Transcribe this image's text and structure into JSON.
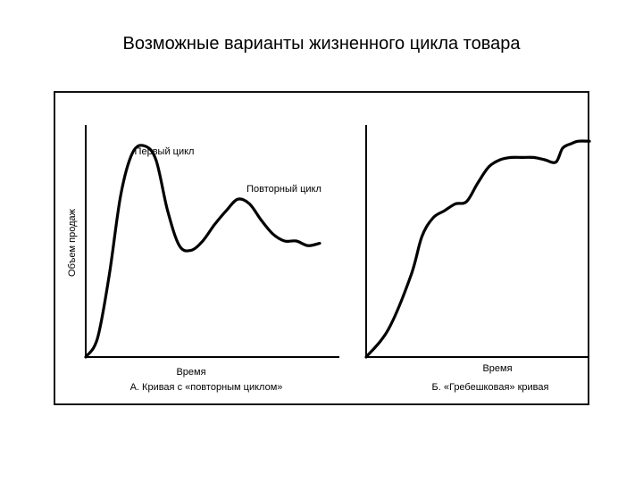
{
  "title": "Возможные варианты жизненного цикла товара",
  "chart_data": [
    {
      "type": "line",
      "ylabel": "Объем продаж",
      "xlabel": "Время",
      "caption": "А. Кривая с «повторным циклом»",
      "annotations": [
        "Первый цикл",
        "Повторный цикл"
      ],
      "axis_ticks": false,
      "x": [
        0,
        5,
        10,
        15,
        20,
        25,
        30,
        35,
        40,
        45,
        50,
        55,
        60,
        65,
        70,
        75,
        80,
        85,
        90,
        95,
        100
      ],
      "y": [
        0,
        8,
        35,
        70,
        88,
        91,
        85,
        63,
        48,
        46,
        50,
        57,
        63,
        68,
        66,
        59,
        53,
        50,
        50,
        48,
        49
      ]
    },
    {
      "type": "line",
      "xlabel": "Время",
      "caption": "Б. «Гребешковая» кривая",
      "axis_ticks": false,
      "x": [
        0,
        10,
        20,
        25,
        30,
        35,
        40,
        45,
        50,
        55,
        60,
        65,
        70,
        75,
        80,
        85,
        88,
        92,
        95,
        100
      ],
      "y": [
        0,
        12,
        35,
        52,
        60,
        63,
        66,
        67,
        75,
        82,
        85,
        86,
        86,
        86,
        85,
        84,
        90,
        92,
        93,
        93
      ]
    }
  ]
}
